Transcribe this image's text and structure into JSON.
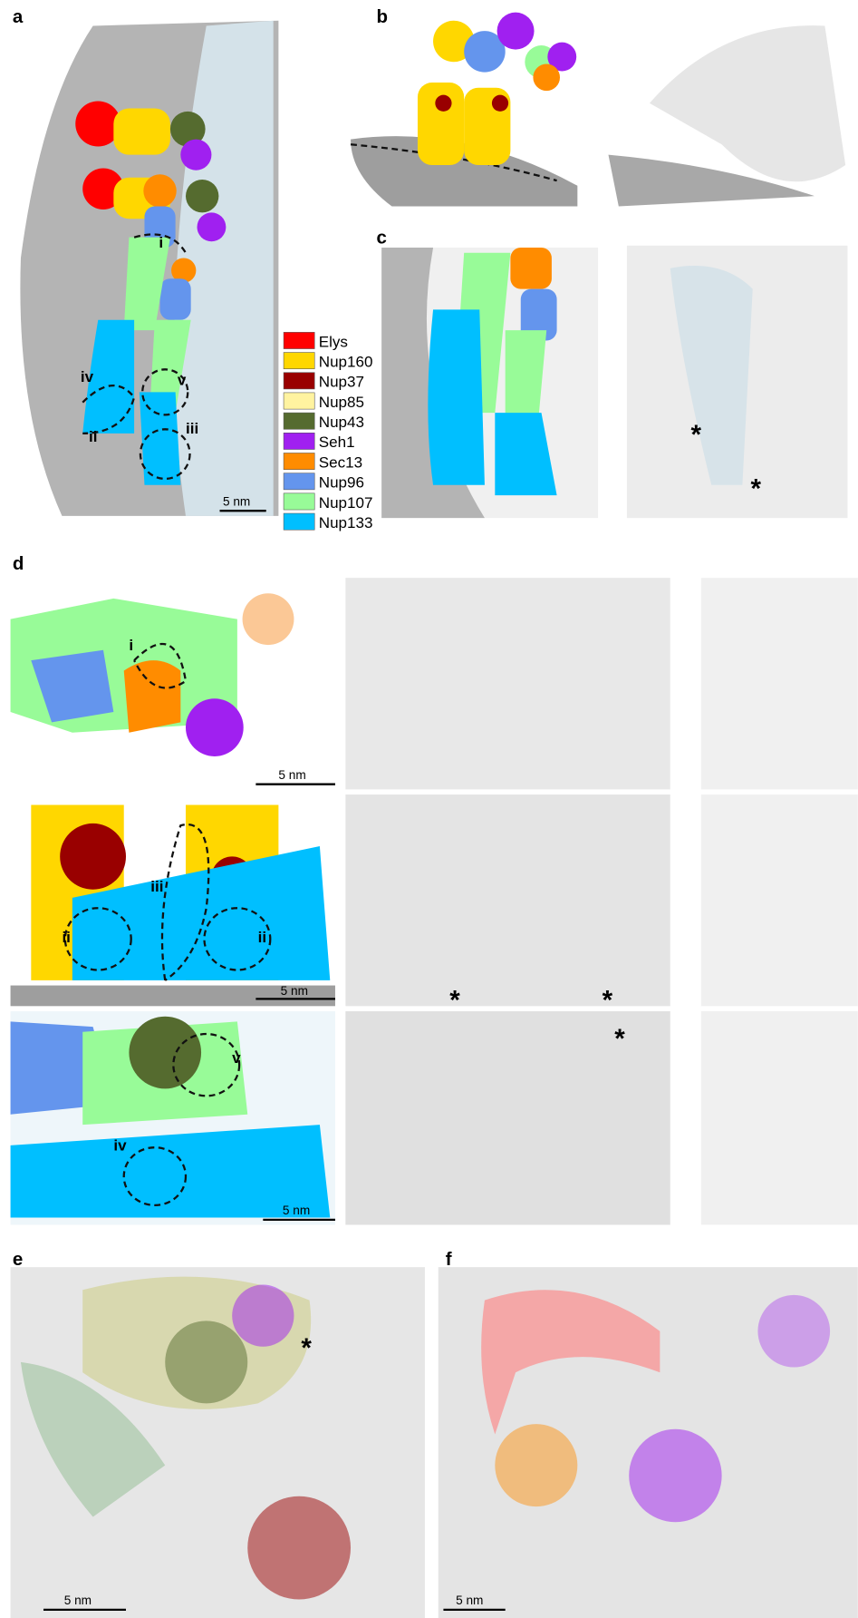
{
  "panels": {
    "a": {
      "label": "a",
      "scale_bar": "5 nm",
      "marks": [
        "i",
        "iv",
        "v",
        "ii",
        "iii"
      ]
    },
    "b": {
      "label": "b"
    },
    "c": {
      "label": "c",
      "asterisks": [
        "*",
        "*"
      ]
    },
    "d": {
      "label": "d",
      "rows": [
        {
          "scale_bar": "5 nm",
          "marks": [
            "i"
          ]
        },
        {
          "scale_bar": "5 nm",
          "marks": [
            "ii",
            "iii",
            "ii"
          ],
          "asterisks": [
            "*",
            "*"
          ]
        },
        {
          "scale_bar": "5 nm",
          "marks": [
            "v",
            "iv"
          ],
          "asterisks": [
            "*"
          ]
        }
      ]
    },
    "e": {
      "label": "e",
      "scale_bar": "5 nm",
      "asterisks": [
        "*"
      ]
    },
    "f": {
      "label": "f",
      "scale_bar": "5 nm"
    }
  },
  "legend": [
    {
      "name": "Elys",
      "color": "#ff0000"
    },
    {
      "name": "Nup160",
      "color": "#ffd700"
    },
    {
      "name": "Nup37",
      "color": "#990000"
    },
    {
      "name": "Nup85",
      "color": "#fff3a0"
    },
    {
      "name": "Nup43",
      "color": "#556b2f"
    },
    {
      "name": "Seh1",
      "color": "#a020f0"
    },
    {
      "name": "Sec13",
      "color": "#ff8c00"
    },
    {
      "name": "Nup96",
      "color": "#6495ed"
    },
    {
      "name": "Nup107",
      "color": "#98fb98"
    },
    {
      "name": "Nup133",
      "color": "#00bfff"
    }
  ]
}
